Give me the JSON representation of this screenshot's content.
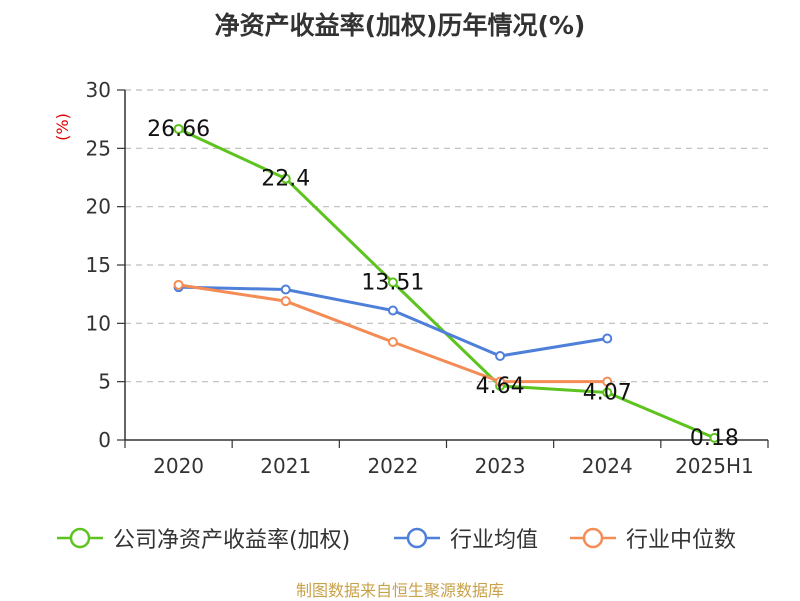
{
  "title": "净资产收益率(加权)历年情况(%)",
  "footer": "制图数据来自恒生聚源数据库",
  "chart_data": {
    "type": "line",
    "categories": [
      "2020",
      "2021",
      "2022",
      "2023",
      "2024",
      "2025H1"
    ],
    "ylabel": "(%)",
    "ylim": [
      0,
      30
    ],
    "yticks": [
      0,
      5,
      10,
      15,
      20,
      25,
      30
    ],
    "grid": true,
    "legend_position": "bottom",
    "series": [
      {
        "name": "公司净资产收益率(加权)",
        "color": "#5dc31f",
        "values": [
          26.66,
          22.4,
          13.51,
          4.64,
          4.07,
          0.18
        ],
        "labels": [
          "26.66",
          "22.4",
          "13.51",
          "4.64",
          "4.07",
          "0.18"
        ]
      },
      {
        "name": "行业均值",
        "color": "#4e7fd9",
        "values": [
          13.1,
          12.9,
          11.1,
          7.2,
          8.7,
          null
        ]
      },
      {
        "name": "行业中位数",
        "color": "#f48c56",
        "values": [
          13.3,
          11.9,
          8.4,
          5.0,
          5.0,
          null
        ]
      }
    ]
  }
}
